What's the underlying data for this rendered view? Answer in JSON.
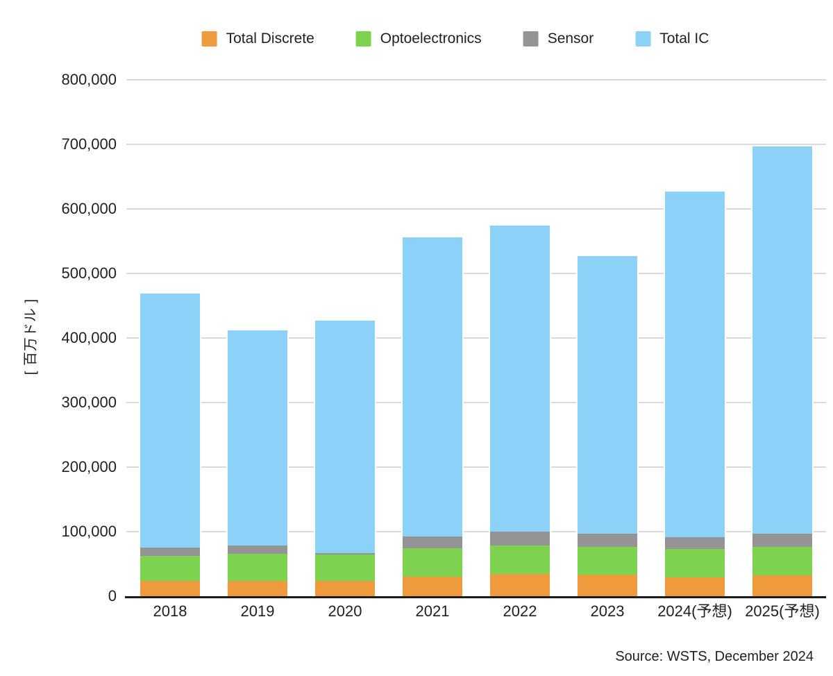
{
  "chart_data": {
    "type": "bar",
    "stacked": true,
    "title": "",
    "categories": [
      "2018",
      "2019",
      "2020",
      "2021",
      "2022",
      "2023",
      "2024(予想)",
      "2025(予想)"
    ],
    "series": [
      {
        "name": "Total Discrete",
        "color": "#EF9A3D",
        "values": [
          24100,
          23900,
          23800,
          30300,
          34100,
          33700,
          29500,
          32000
        ]
      },
      {
        "name": "Optoelectronics",
        "color": "#7DD24F",
        "values": [
          38000,
          41600,
          40400,
          43400,
          43900,
          42300,
          43500,
          44100
        ]
      },
      {
        "name": "Sensor",
        "color": "#949494",
        "values": [
          13400,
          13500,
          3000,
          19100,
          22300,
          20800,
          18500,
          20700
        ]
      },
      {
        "name": "Total IC",
        "color": "#8CD1F7",
        "values": [
          393300,
          333300,
          359500,
          463000,
          473800,
          430100,
          535400,
          600400
        ]
      }
    ],
    "totals": [
      468800,
      412300,
      426700,
      555800,
      574100,
      526900,
      626900,
      697200
    ],
    "xlabel": "",
    "ylabel": "[ 百万ドル ]",
    "ylim": [
      0,
      800000
    ],
    "ytick_step": 100000,
    "yticks": [
      "0",
      "100,000",
      "200,000",
      "300,000",
      "400,000",
      "500,000",
      "600,000",
      "700,000",
      "800,000"
    ],
    "grid": true,
    "legend_position": "top",
    "source": "Source: WSTS, December 2024"
  },
  "colors": {
    "gridline": "#dadada",
    "axis": "#1b1b1b",
    "text": "#1f1f1f",
    "background": "#ffffff"
  }
}
